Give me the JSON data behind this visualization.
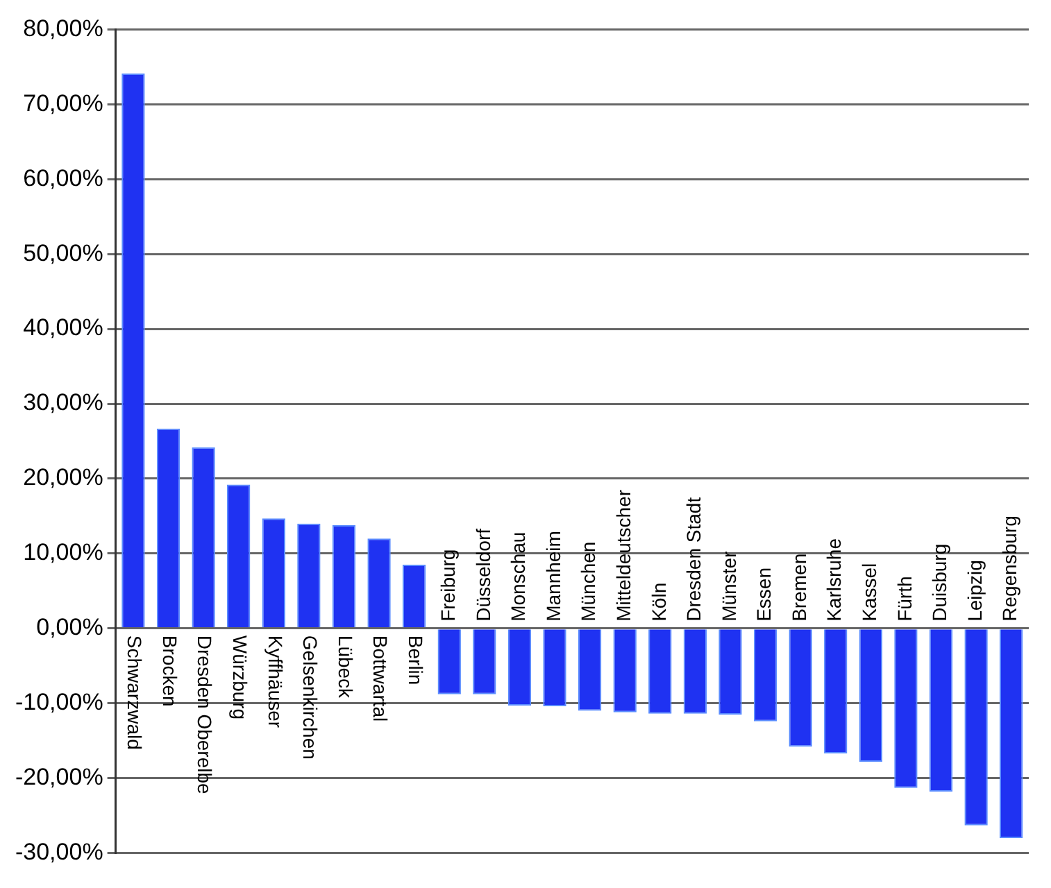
{
  "chart_data": {
    "type": "bar",
    "categories": [
      "Schwarzwald",
      "Brocken",
      "Dresden Oberelbe",
      "Würzburg",
      "Kyffhäuser",
      "Gelsenkirchen",
      "Lübeck",
      "Bottwartal",
      "Berlin",
      "Freiburg",
      "Düsseldorf",
      "Monschau",
      "Mannheim",
      "München",
      "Mitteldeutscher",
      "Köln",
      "Dresden Stadt",
      "Münster",
      "Essen",
      "Bremen",
      "Karlsruhe",
      "Kassel",
      "Fürth",
      "Duisburg",
      "Leipzig",
      "Regensburg"
    ],
    "values": [
      74.1,
      26.7,
      24.2,
      19.2,
      14.7,
      14.0,
      13.8,
      12.0,
      8.5,
      -8.8,
      -8.8,
      -10.3,
      -10.4,
      -11.0,
      -11.2,
      -11.4,
      -11.4,
      -11.5,
      -12.4,
      -15.8,
      -16.7,
      -17.8,
      -21.3,
      -21.8,
      -26.3,
      -28.0
    ],
    "color": "#1f32f2",
    "ylim": [
      -30,
      80
    ],
    "yticks": [
      {
        "value": -30,
        "label": "-30,00%"
      },
      {
        "value": -20,
        "label": "-20,00%"
      },
      {
        "value": -10,
        "label": "-10,00%"
      },
      {
        "value": 0,
        "label": "0,00%"
      },
      {
        "value": 10,
        "label": "10,00%"
      },
      {
        "value": 20,
        "label": "20,00%"
      },
      {
        "value": 30,
        "label": "30,00%"
      },
      {
        "value": 40,
        "label": "40,00%"
      },
      {
        "value": 50,
        "label": "50,00%"
      },
      {
        "value": 60,
        "label": "60,00%"
      },
      {
        "value": 70,
        "label": "70,00%"
      },
      {
        "value": 80,
        "label": "80,00%"
      }
    ],
    "grid": "y",
    "legend": false
  }
}
